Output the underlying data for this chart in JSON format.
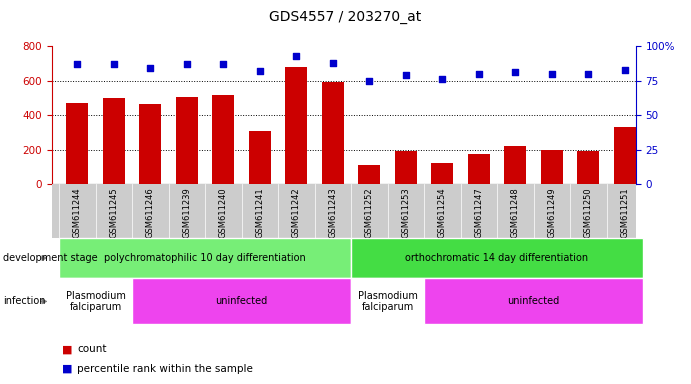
{
  "title": "GDS4557 / 203270_at",
  "samples": [
    "GSM611244",
    "GSM611245",
    "GSM611246",
    "GSM611239",
    "GSM611240",
    "GSM611241",
    "GSM611242",
    "GSM611243",
    "GSM611252",
    "GSM611253",
    "GSM611254",
    "GSM611247",
    "GSM611248",
    "GSM611249",
    "GSM611250",
    "GSM611251"
  ],
  "counts": [
    470,
    500,
    465,
    505,
    515,
    310,
    680,
    590,
    110,
    190,
    125,
    175,
    220,
    200,
    195,
    330
  ],
  "percentiles": [
    87,
    87,
    84,
    87,
    87,
    82,
    93,
    88,
    75,
    79,
    76,
    80,
    81,
    80,
    80,
    83
  ],
  "bar_color": "#cc0000",
  "dot_color": "#0000cc",
  "ylim_left": [
    0,
    800
  ],
  "ylim_right": [
    0,
    100
  ],
  "yticks_left": [
    0,
    200,
    400,
    600,
    800
  ],
  "yticks_right": [
    0,
    25,
    50,
    75,
    100
  ],
  "yticklabels_right": [
    "0",
    "25",
    "50",
    "75",
    "100%"
  ],
  "grid_lines": [
    200,
    400,
    600
  ],
  "groups": [
    {
      "label": "polychromatophilic 10 day differentiation",
      "start": 0,
      "end": 8,
      "color": "#77ee77"
    },
    {
      "label": "orthochromatic 14 day differentiation",
      "start": 8,
      "end": 16,
      "color": "#44dd44"
    }
  ],
  "infections": [
    {
      "label": "Plasmodium\nfalciparum",
      "start": 0,
      "end": 2,
      "color": "#ffffff"
    },
    {
      "label": "uninfected",
      "start": 2,
      "end": 8,
      "color": "#ee44ee"
    },
    {
      "label": "Plasmodium\nfalciparum",
      "start": 8,
      "end": 10,
      "color": "#ffffff"
    },
    {
      "label": "uninfected",
      "start": 10,
      "end": 16,
      "color": "#ee44ee"
    }
  ],
  "ax_label_color_left": "#cc0000",
  "ax_label_color_right": "#0000cc",
  "background_color": "#ffffff",
  "tick_area_color": "#cccccc",
  "xlim": [
    -0.7,
    15.3
  ]
}
